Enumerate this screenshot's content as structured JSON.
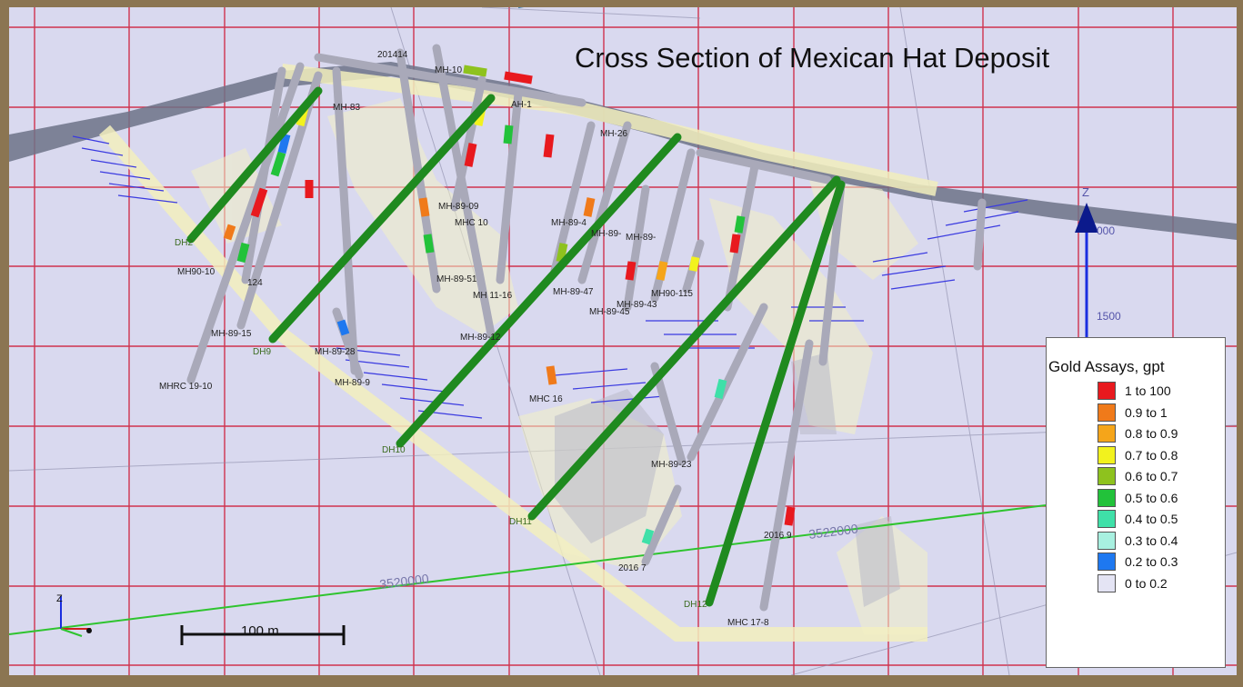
{
  "title": "Cross Section of Mexican Hat Deposit",
  "legend": {
    "title": "Gold Assays, gpt",
    "items": [
      {
        "label": "1 to 100",
        "color": "#e8191e"
      },
      {
        "label": "0.9 to 1",
        "color": "#f07a1a"
      },
      {
        "label": "0.8 to 0.9",
        "color": "#f5a51a"
      },
      {
        "label": "0.7 to 0.8",
        "color": "#f2f21e"
      },
      {
        "label": "0.6 to 0.7",
        "color": "#8ec21e"
      },
      {
        "label": "0.5 to 0.6",
        "color": "#22c23a"
      },
      {
        "label": "0.4 to 0.5",
        "color": "#3fe0a8"
      },
      {
        "label": "0.3 to 0.4",
        "color": "#a8f0e0"
      },
      {
        "label": "0.2 to 0.3",
        "color": "#1e78f0"
      },
      {
        "label": "0 to 0.2",
        "color": "#e4e4f4"
      }
    ]
  },
  "scale_bar": {
    "label": "100 m"
  },
  "axis": {
    "z_label": "Z",
    "elev_1": "000",
    "elev_2": "1500"
  },
  "northing_labels": [
    "3520000",
    "3522000"
  ],
  "hole_labels": {
    "h1": "201414",
    "h2": "MH-10",
    "h3": "MH-83",
    "h4": "AH-1",
    "h5": "MH-26",
    "h6": "MH-89-09",
    "h7": "MHC 10",
    "h8": "MH-89-4",
    "h9": "MH-89-",
    "h10": "MH-89-",
    "h11": "DH2",
    "h12": "MH90-10",
    "h13": "124",
    "h14": "MH-89-51",
    "h15": "MH 11-16",
    "h16": "MH-89-47",
    "h17": "MH90-115",
    "h18": "MH-89-43",
    "h19": "MH-89-45",
    "h20": "MH-89-15",
    "h21": "MH-89-12",
    "h22": "MH-89-28",
    "h23": "MH-89-9",
    "h24": "MHRC 19-10",
    "h25": "MHC 16",
    "h26": "MH-89-23",
    "h27": "2016 7",
    "h28": "2016 9",
    "h29": "MHC 17-8"
  },
  "drill_holes": {
    "d1": "DH9",
    "d2": "DH10",
    "d3": "DH11",
    "d4": "DH12"
  }
}
